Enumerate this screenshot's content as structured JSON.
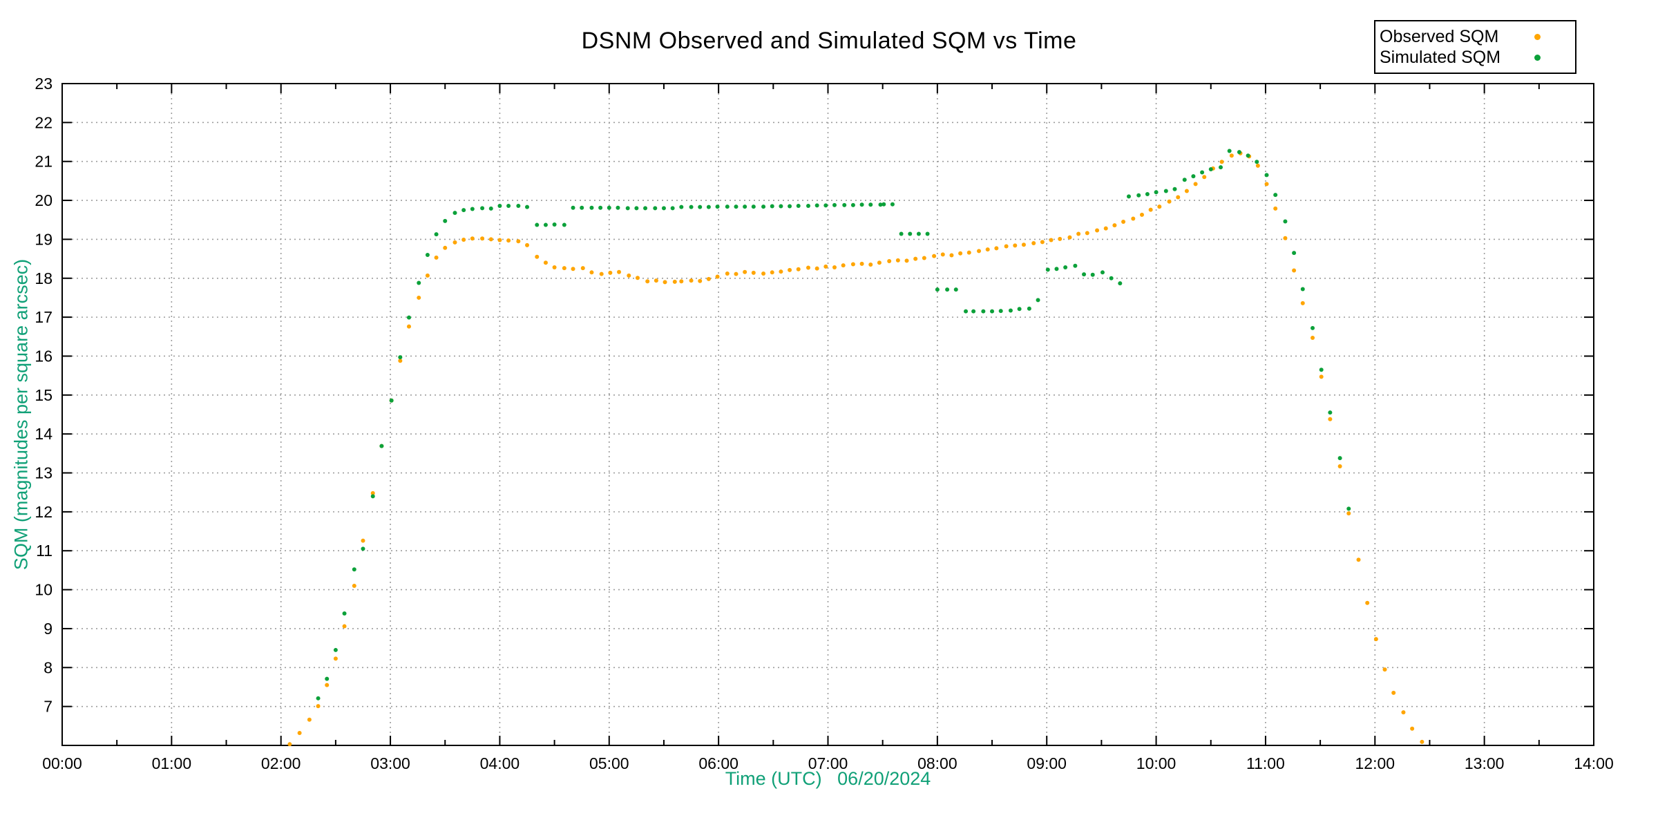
{
  "colors": {
    "observed": "#ffa500",
    "simulated": "#0ca13a",
    "axis_label": "#10a077",
    "grid": "#9c9c9c",
    "axis": "#000000",
    "background": "#ffffff"
  },
  "legend": {
    "position": "top-right"
  },
  "chart_data": {
    "type": "scatter",
    "title": "DSNM Observed and Simulated SQM vs Time",
    "xlabel": "Time (UTC)   06/20/2024",
    "ylabel": "SQM (magnitudes per square arcsec)",
    "x_tick_labels": [
      "00:00",
      "01:00",
      "02:00",
      "03:00",
      "04:00",
      "05:00",
      "06:00",
      "07:00",
      "08:00",
      "09:00",
      "10:00",
      "11:00",
      "12:00",
      "13:00",
      "14:00"
    ],
    "y_tick_labels": [
      "7",
      "8",
      "9",
      "10",
      "11",
      "12",
      "13",
      "14",
      "15",
      "16",
      "17",
      "18",
      "19",
      "20",
      "21",
      "22",
      "23"
    ],
    "xlim_hours": [
      0,
      14
    ],
    "ylim": [
      6,
      23
    ],
    "grid": true,
    "legend_position": "top-right",
    "point_radius": 3,
    "series": [
      {
        "name": "Observed SQM",
        "color": "#ffa500",
        "points": [
          [
            2.08,
            6.03
          ],
          [
            2.17,
            6.32
          ],
          [
            2.26,
            6.66
          ],
          [
            2.34,
            7.01
          ],
          [
            2.42,
            7.55
          ],
          [
            2.5,
            8.23
          ],
          [
            2.58,
            9.06
          ],
          [
            2.67,
            10.1
          ],
          [
            2.75,
            11.26
          ],
          [
            2.84,
            12.48
          ],
          [
            2.92,
            13.69
          ],
          [
            3.01,
            14.86
          ],
          [
            3.09,
            15.88
          ],
          [
            3.17,
            16.76
          ],
          [
            3.26,
            17.5
          ],
          [
            3.34,
            18.07
          ],
          [
            3.42,
            18.53
          ],
          [
            3.5,
            18.78
          ],
          [
            3.59,
            18.92
          ],
          [
            3.67,
            18.99
          ],
          [
            3.75,
            19.02
          ],
          [
            3.84,
            19.02
          ],
          [
            3.92,
            19.0
          ],
          [
            4.0,
            18.98
          ],
          [
            4.08,
            18.97
          ],
          [
            4.17,
            18.95
          ],
          [
            4.25,
            18.85
          ],
          [
            4.34,
            18.55
          ],
          [
            4.42,
            18.4
          ],
          [
            4.5,
            18.28
          ],
          [
            4.59,
            18.26
          ],
          [
            4.67,
            18.24
          ],
          [
            4.76,
            18.26
          ],
          [
            4.84,
            18.15
          ],
          [
            4.93,
            18.11
          ],
          [
            5.01,
            18.14
          ],
          [
            5.09,
            18.16
          ],
          [
            5.18,
            18.07
          ],
          [
            5.26,
            18.01
          ],
          [
            5.35,
            17.92
          ],
          [
            5.43,
            17.94
          ],
          [
            5.51,
            17.9
          ],
          [
            5.6,
            17.91
          ],
          [
            5.66,
            17.92
          ],
          [
            5.75,
            17.94
          ],
          [
            5.83,
            17.93
          ],
          [
            5.91,
            17.98
          ],
          [
            5.99,
            18.04
          ],
          [
            6.08,
            18.12
          ],
          [
            6.16,
            18.11
          ],
          [
            6.24,
            18.16
          ],
          [
            6.32,
            18.14
          ],
          [
            6.41,
            18.12
          ],
          [
            6.49,
            18.15
          ],
          [
            6.57,
            18.17
          ],
          [
            6.65,
            18.21
          ],
          [
            6.73,
            18.23
          ],
          [
            6.82,
            18.27
          ],
          [
            6.9,
            18.25
          ],
          [
            6.98,
            18.3
          ],
          [
            7.06,
            18.28
          ],
          [
            7.14,
            18.33
          ],
          [
            7.23,
            18.36
          ],
          [
            7.31,
            18.37
          ],
          [
            7.39,
            18.35
          ],
          [
            7.47,
            18.4
          ],
          [
            7.56,
            18.44
          ],
          [
            7.64,
            18.46
          ],
          [
            7.72,
            18.45
          ],
          [
            7.8,
            18.5
          ],
          [
            7.88,
            18.52
          ],
          [
            7.97,
            18.57
          ],
          [
            8.05,
            18.61
          ],
          [
            8.13,
            18.59
          ],
          [
            8.21,
            18.64
          ],
          [
            8.29,
            18.66
          ],
          [
            8.38,
            18.7
          ],
          [
            8.46,
            18.74
          ],
          [
            8.54,
            18.77
          ],
          [
            8.63,
            18.82
          ],
          [
            8.71,
            18.84
          ],
          [
            8.79,
            18.86
          ],
          [
            8.88,
            18.9
          ],
          [
            8.96,
            18.93
          ],
          [
            9.04,
            18.98
          ],
          [
            9.12,
            19.01
          ],
          [
            9.21,
            19.05
          ],
          [
            9.29,
            19.14
          ],
          [
            9.37,
            19.16
          ],
          [
            9.46,
            19.23
          ],
          [
            9.54,
            19.28
          ],
          [
            9.62,
            19.36
          ],
          [
            9.7,
            19.45
          ],
          [
            9.79,
            19.53
          ],
          [
            9.87,
            19.63
          ],
          [
            9.95,
            19.76
          ],
          [
            10.03,
            19.84
          ],
          [
            10.12,
            19.97
          ],
          [
            10.2,
            20.08
          ],
          [
            10.28,
            20.24
          ],
          [
            10.36,
            20.42
          ],
          [
            10.44,
            20.6
          ],
          [
            10.52,
            20.82
          ],
          [
            10.6,
            20.99
          ],
          [
            10.69,
            21.15
          ],
          [
            10.77,
            21.21
          ],
          [
            10.85,
            21.13
          ],
          [
            10.93,
            20.89
          ],
          [
            11.01,
            20.42
          ],
          [
            11.09,
            19.79
          ],
          [
            11.18,
            19.03
          ],
          [
            11.26,
            18.2
          ],
          [
            11.34,
            17.36
          ],
          [
            11.43,
            16.47
          ],
          [
            11.51,
            15.47
          ],
          [
            11.59,
            14.38
          ],
          [
            11.68,
            13.17
          ],
          [
            11.76,
            11.96
          ],
          [
            11.85,
            10.77
          ],
          [
            11.93,
            9.66
          ],
          [
            12.01,
            8.73
          ],
          [
            12.09,
            7.95
          ],
          [
            12.17,
            7.35
          ],
          [
            12.26,
            6.85
          ],
          [
            12.34,
            6.43
          ],
          [
            12.43,
            6.09
          ]
        ]
      },
      {
        "name": "Simulated SQM",
        "color": "#0ca13a",
        "points": [
          [
            2.34,
            7.21
          ],
          [
            2.42,
            7.71
          ],
          [
            2.5,
            8.45
          ],
          [
            2.58,
            9.39
          ],
          [
            2.67,
            10.52
          ],
          [
            2.75,
            11.05
          ],
          [
            2.84,
            12.4
          ],
          [
            2.92,
            13.69
          ],
          [
            3.01,
            14.86
          ],
          [
            3.09,
            15.97
          ],
          [
            3.17,
            16.99
          ],
          [
            3.26,
            17.88
          ],
          [
            3.34,
            18.6
          ],
          [
            3.42,
            19.13
          ],
          [
            3.5,
            19.47
          ],
          [
            3.59,
            19.68
          ],
          [
            3.67,
            19.75
          ],
          [
            3.75,
            19.78
          ],
          [
            3.84,
            19.8
          ],
          [
            3.92,
            19.79
          ],
          [
            4.0,
            19.86
          ],
          [
            4.08,
            19.86
          ],
          [
            4.17,
            19.86
          ],
          [
            4.25,
            19.83
          ],
          [
            4.34,
            19.37
          ],
          [
            4.42,
            19.37
          ],
          [
            4.5,
            19.38
          ],
          [
            4.59,
            19.37
          ],
          [
            4.67,
            19.81
          ],
          [
            4.75,
            19.81
          ],
          [
            4.84,
            19.81
          ],
          [
            4.92,
            19.81
          ],
          [
            5.0,
            19.81
          ],
          [
            5.08,
            19.81
          ],
          [
            5.17,
            19.8
          ],
          [
            5.25,
            19.8
          ],
          [
            5.33,
            19.8
          ],
          [
            5.42,
            19.8
          ],
          [
            5.5,
            19.8
          ],
          [
            5.58,
            19.8
          ],
          [
            5.66,
            19.83
          ],
          [
            5.75,
            19.83
          ],
          [
            5.83,
            19.83
          ],
          [
            5.91,
            19.83
          ],
          [
            5.99,
            19.84
          ],
          [
            6.08,
            19.84
          ],
          [
            6.16,
            19.84
          ],
          [
            6.24,
            19.84
          ],
          [
            6.32,
            19.84
          ],
          [
            6.41,
            19.84
          ],
          [
            6.49,
            19.85
          ],
          [
            6.57,
            19.85
          ],
          [
            6.65,
            19.85
          ],
          [
            6.73,
            19.86
          ],
          [
            6.82,
            19.86
          ],
          [
            6.9,
            19.87
          ],
          [
            6.98,
            19.87
          ],
          [
            7.06,
            19.88
          ],
          [
            7.15,
            19.88
          ],
          [
            7.23,
            19.88
          ],
          [
            7.31,
            19.89
          ],
          [
            7.39,
            19.89
          ],
          [
            7.48,
            19.89
          ],
          [
            7.51,
            19.9
          ],
          [
            7.59,
            19.9
          ],
          [
            7.67,
            19.14
          ],
          [
            7.75,
            19.14
          ],
          [
            7.83,
            19.14
          ],
          [
            7.91,
            19.14
          ],
          [
            8.0,
            17.71
          ],
          [
            8.09,
            17.71
          ],
          [
            8.17,
            17.71
          ],
          [
            8.26,
            17.15
          ],
          [
            8.33,
            17.15
          ],
          [
            8.42,
            17.15
          ],
          [
            8.5,
            17.15
          ],
          [
            8.58,
            17.16
          ],
          [
            8.67,
            17.17
          ],
          [
            8.75,
            17.21
          ],
          [
            8.84,
            17.22
          ],
          [
            8.92,
            17.44
          ],
          [
            9.01,
            18.22
          ],
          [
            9.09,
            18.24
          ],
          [
            9.17,
            18.28
          ],
          [
            9.26,
            18.32
          ],
          [
            9.34,
            18.1
          ],
          [
            9.42,
            18.09
          ],
          [
            9.51,
            18.15
          ],
          [
            9.59,
            18.0
          ],
          [
            9.67,
            17.87
          ],
          [
            9.75,
            20.1
          ],
          [
            9.84,
            20.13
          ],
          [
            9.92,
            20.16
          ],
          [
            10.0,
            20.21
          ],
          [
            10.09,
            20.24
          ],
          [
            10.17,
            20.29
          ],
          [
            10.26,
            20.53
          ],
          [
            10.34,
            20.62
          ],
          [
            10.42,
            20.72
          ],
          [
            10.5,
            20.8
          ],
          [
            10.59,
            20.85
          ],
          [
            10.67,
            21.27
          ],
          [
            10.76,
            21.24
          ],
          [
            10.84,
            21.15
          ],
          [
            10.92,
            20.99
          ],
          [
            11.01,
            20.65
          ],
          [
            11.09,
            20.14
          ],
          [
            11.18,
            19.46
          ],
          [
            11.26,
            18.65
          ],
          [
            11.34,
            17.72
          ],
          [
            11.43,
            16.72
          ],
          [
            11.51,
            15.65
          ],
          [
            11.59,
            14.55
          ],
          [
            11.68,
            13.38
          ],
          [
            11.76,
            12.08
          ]
        ]
      }
    ]
  }
}
